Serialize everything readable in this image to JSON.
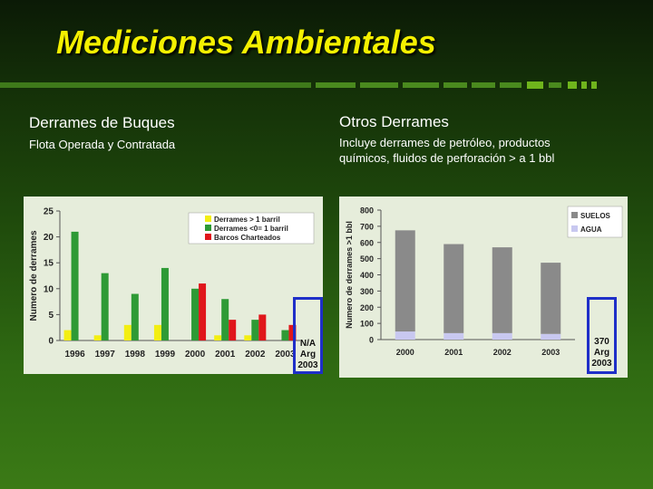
{
  "slide": {
    "title": "Mediciones Ambientales"
  },
  "left": {
    "heading": "Derrames de Buques",
    "subheading": "Flota Operada y Contratada",
    "highlight": {
      "value": "N/A",
      "label1": "Arg",
      "label2": "2003"
    }
  },
  "right": {
    "heading": "Otros Derrames",
    "subheading_line1": "Incluye derrames de petróleo, productos",
    "subheading_line2": "químicos, fluidos de perforación > a 1 bbl",
    "highlight": {
      "value": "370",
      "label1": "Arg",
      "label2": "2003"
    }
  },
  "colors": {
    "title": "#f4f000",
    "highlight_border": "#1f2fc8",
    "yellow": "#f3ee12",
    "green": "#2e9a35",
    "red": "#e0161b",
    "suelos": "#8a8a8a",
    "agua": "#c8c8f0"
  },
  "chart_data": [
    {
      "type": "bar",
      "ylabel": "Numero de derrames",
      "ylim": [
        0,
        25
      ],
      "yticks": [
        0,
        5,
        10,
        15,
        20,
        25
      ],
      "legend_position": "top-right",
      "categories": [
        "1996",
        "1997",
        "1998",
        "1999",
        "2000",
        "2001",
        "2002",
        "2003"
      ],
      "series": [
        {
          "name": "Derrames > 1 barril",
          "color": "#f3ee12",
          "values": [
            2,
            1,
            3,
            3,
            0,
            1,
            1,
            0
          ]
        },
        {
          "name": "Derrames <0= 1 barril",
          "color": "#2e9a35",
          "values": [
            21,
            13,
            9,
            14,
            10,
            8,
            4,
            2
          ]
        },
        {
          "name": "Barcos Charteados",
          "color": "#e0161b",
          "values": [
            0,
            0,
            0,
            0,
            11,
            4,
            5,
            3
          ]
        }
      ]
    },
    {
      "type": "bar",
      "stacked": true,
      "ylabel": "Numero de derrames >1 bbl",
      "ylim": [
        0,
        800
      ],
      "yticks": [
        0,
        100,
        200,
        300,
        400,
        500,
        600,
        700,
        800
      ],
      "legend_position": "top-right",
      "categories": [
        "2000",
        "2001",
        "2002",
        "2003"
      ],
      "series": [
        {
          "name": "SUELOS",
          "color": "#8a8a8a",
          "values": [
            625,
            550,
            530,
            440
          ]
        },
        {
          "name": "AGUA",
          "color": "#c8c8f0",
          "values": [
            50,
            40,
            40,
            35
          ]
        }
      ]
    }
  ]
}
